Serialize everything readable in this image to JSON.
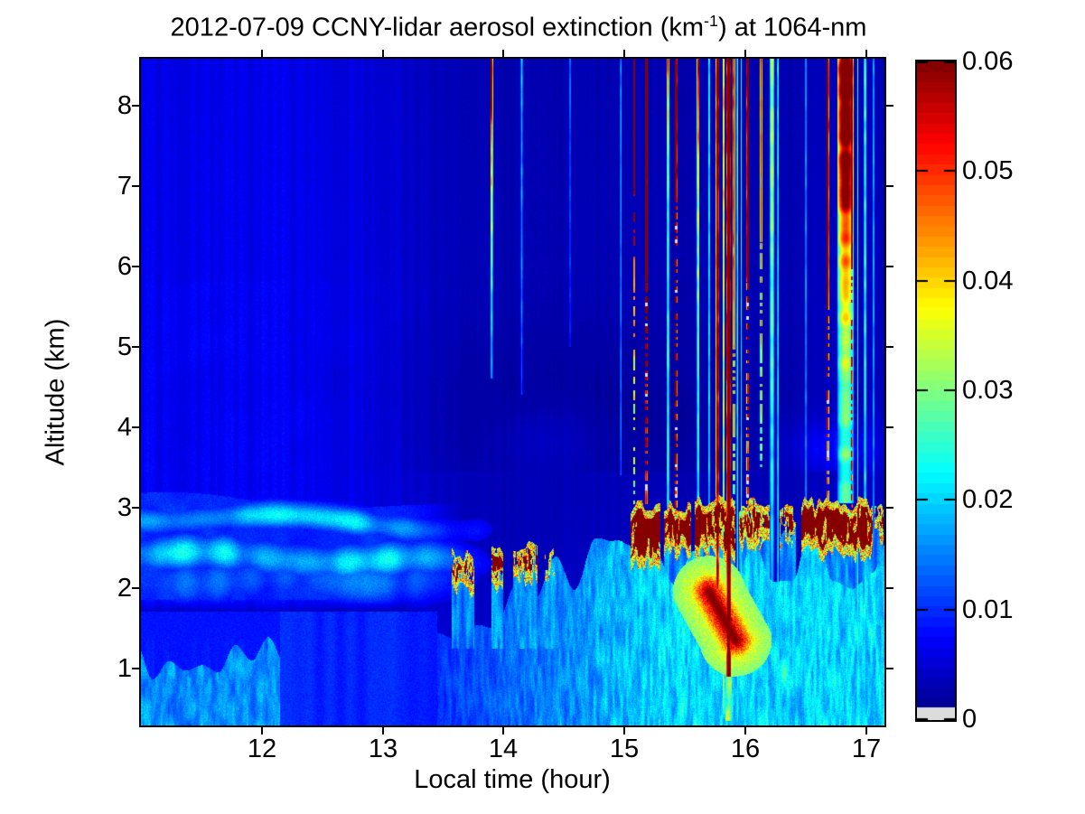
{
  "title": {
    "pre": "2012-07-09 CCNY-lidar aerosol extinction (km",
    "sup": "-1",
    "post": ") at 1064-nm"
  },
  "chart_data": {
    "type": "heatmap",
    "title": "2012-07-09 CCNY-lidar aerosol extinction (km^-1) at 1064-nm",
    "xlabel": "Local time (hour)",
    "ylabel": "Altitude (km)",
    "x_range": [
      11.0,
      17.15
    ],
    "y_range": [
      0.29,
      8.58
    ],
    "x_ticks": [
      12,
      13,
      14,
      15,
      16,
      17
    ],
    "y_ticks": [
      1,
      2,
      3,
      4,
      5,
      6,
      7,
      8
    ],
    "grid": false,
    "colormap": "jet64",
    "under_color": "#dcdcdc",
    "colorbar": {
      "min": 0,
      "max": 0.06,
      "ticks": [
        0.06,
        0.05,
        0.04,
        0.03,
        0.02,
        0.01,
        0
      ],
      "tick_labels": [
        "0.06",
        "0.05",
        "0.04",
        "0.03",
        "0.02",
        "0.01",
        "0"
      ],
      "position": "right",
      "under_strip_frac": 0.019
    },
    "field": {
      "column_noise": 0.16,
      "pixel_noise": 0.11,
      "background": {
        "left_val": 0.0068,
        "mid_val": 0.0032,
        "trans_t": [
          12.3,
          14.0
        ],
        "right_boost": 0.0007,
        "right_t": 16.3,
        "alt_fade": 0.1,
        "bl_top": 3.45,
        "low_gain": 0.25,
        "left_wavy_amp": 0.0013,
        "dark_patch": {
          "t": 14.6,
          "st": 1.5,
          "a": 4.1,
          "sa": 1.05,
          "amp": 0.0017
        },
        "bumps": [
          {
            "t": 16.75,
            "st": 0.38,
            "a": 3.75,
            "sa": 0.32,
            "amp": 0.004
          },
          {
            "t": 14.35,
            "st": 0.45,
            "a": 3.85,
            "sa": 0.5,
            "amp": 0.0022
          }
        ]
      },
      "layers": {
        "fade_t": [
          12.9,
          14.2
        ],
        "mix_top": {
          "a0": 3.15,
          "slope": 0.07,
          "wamp": 0.06,
          "wfreq": 2.9,
          "fill": 0.0085,
          "fill_n": 0.0025
        },
        "bands": [
          {
            "c0": 2.9,
            "slope": 0.05,
            "wamp": 0.07,
            "wfreq": 2.6,
            "wph": 1.2,
            "sigma": 0.16,
            "amp_lo": 0.009,
            "amp_hi": 0.011,
            "nfreq": 4.7
          },
          {
            "c0": 2.42,
            "slope": 0.04,
            "wamp": 0.05,
            "wfreq": 3.4,
            "wph": 0.0,
            "sigma": 0.21,
            "amp_lo": 0.01,
            "amp_hi": 0.011,
            "nfreq": 5.9
          },
          {
            "c0": 2.1,
            "slope": 0.0,
            "wamp": 0.04,
            "wfreq": 4.1,
            "wph": 2.0,
            "sigma": 0.3,
            "amp_lo": 0.006,
            "amp_hi": 0.006,
            "nfreq": 7.3
          }
        ],
        "base_add": 0.004,
        "dark_slot": {
          "a": 1.62,
          "sigma": 0.14,
          "depth": 0.78,
          "t_end": 13.5
        }
      },
      "bottom": {
        "plume_t_end": 12.15,
        "plume_h0": 0.85,
        "plume_hvar": 0.55,
        "plume_v": 0.011,
        "plume_nv": 0.01,
        "calm_t_end": 13.45,
        "calm_v": 0.0085,
        "calm_nv": 0.002,
        "grow_time": 1.8,
        "grow_v0": 0.01,
        "grow_v1": 0.01,
        "grow_top0": 1.55,
        "grow_top1": 1.0
      },
      "clusters": [
        [
          13.57,
          13.76,
          2.02,
          2.4,
          0.55
        ],
        [
          13.9,
          14.0,
          2.05,
          2.45,
          0.5
        ],
        [
          14.08,
          14.28,
          2.15,
          2.55,
          0.55
        ],
        [
          14.34,
          14.42,
          2.2,
          2.42,
          0.35
        ],
        [
          15.05,
          15.3,
          2.3,
          3.0,
          0.7
        ],
        [
          15.33,
          15.55,
          2.45,
          3.0,
          0.65
        ],
        [
          15.58,
          15.92,
          2.45,
          3.08,
          0.65
        ],
        [
          15.95,
          16.2,
          2.55,
          3.05,
          0.55
        ],
        [
          16.28,
          16.42,
          2.6,
          2.95,
          0.4
        ],
        [
          16.46,
          17.05,
          2.45,
          3.05,
          0.72
        ],
        [
          17.07,
          17.14,
          2.65,
          2.95,
          0.45
        ]
      ],
      "cluster_style": {
        "core_v": 0.067,
        "fringe_v": 0.032,
        "fringe_band": 0.2,
        "plume_v": 0.0155
      },
      "feature": {
        "seg": [
          15.7,
          1.95,
          15.92,
          1.35
        ],
        "core_r": 0.22,
        "core_v": 0.063,
        "halo_r": 0.45,
        "halo_v": 0.035,
        "streak": {
          "t0": 15.835,
          "t1": 15.885,
          "a0": 0.35,
          "a1": 1.6,
          "v": 0.027
        },
        "spot": {
          "t": 16.32,
          "st": 0.07,
          "a": 0.95,
          "sa": 0.35,
          "v": 0.027
        }
      },
      "stripes": [
        {
          "t": 13.9,
          "w": 0.022,
          "end": 4.6,
          "dot": 0,
          "gray": 0,
          "stops": [
            [
              8.6,
              0.053
            ],
            [
              7.8,
              0.042
            ],
            [
              6.8,
              0.028
            ],
            [
              5.6,
              0.018
            ],
            [
              4.6,
              0.012
            ]
          ]
        },
        {
          "t": 14.15,
          "w": 0.016,
          "end": 4.4,
          "dot": 0,
          "gray": 0,
          "stops": [
            [
              8.6,
              0.016
            ],
            [
              5.5,
              0.012
            ],
            [
              4.4,
              0.009
            ]
          ]
        },
        {
          "t": 14.55,
          "w": 0.013,
          "end": 5.0,
          "dot": 0,
          "gray": 0,
          "stops": [
            [
              8.6,
              0.012
            ],
            [
              5.0,
              0.008
            ]
          ]
        },
        {
          "t": 14.97,
          "w": 0.013,
          "end": 3.4,
          "dot": 0,
          "gray": 0,
          "stops": [
            [
              8.6,
              0.014
            ],
            [
              3.4,
              0.011
            ]
          ]
        },
        {
          "t": 15.08,
          "w": 0.02,
          "end": 2.95,
          "dot": 6.9,
          "gray": 0,
          "stops": [
            [
              8.6,
              0.062
            ],
            [
              6.9,
              0.055
            ],
            [
              5.0,
              0.035
            ],
            [
              2.95,
              0.025
            ]
          ]
        },
        {
          "t": 15.18,
          "w": 0.026,
          "end": 2.95,
          "dot": 5.8,
          "gray": 1,
          "stops": [
            [
              8.6,
              0.065
            ],
            [
              5.8,
              0.062
            ],
            [
              2.95,
              0.045
            ]
          ]
        },
        {
          "t": 15.36,
          "w": 0.018,
          "end": 0.29,
          "dot": 0,
          "gray": 0,
          "stops": [
            [
              8.6,
              0.048
            ],
            [
              8.0,
              0.03
            ],
            [
              6.5,
              0.022
            ],
            [
              3.0,
              0.02
            ],
            [
              0.29,
              0.015
            ]
          ]
        },
        {
          "t": 15.425,
          "w": 0.024,
          "end": 2.95,
          "dot": 6.8,
          "gray": 1,
          "stops": [
            [
              8.6,
              0.065
            ],
            [
              6.8,
              0.062
            ],
            [
              2.95,
              0.048
            ]
          ]
        },
        {
          "t": 15.61,
          "w": 0.022,
          "end": 0.29,
          "dot": 0,
          "gray": 0,
          "stops": [
            [
              8.6,
              0.044
            ],
            [
              6.8,
              0.028
            ],
            [
              4.5,
              0.02
            ],
            [
              0.29,
              0.015
            ]
          ]
        },
        {
          "t": 15.7,
          "w": 0.014,
          "end": 0.29,
          "dot": 0,
          "gray": 0,
          "stops": [
            [
              8.6,
              0.02
            ],
            [
              0.29,
              0.015
            ]
          ]
        },
        {
          "t": 15.77,
          "w": 0.028,
          "end": 2.0,
          "dot": 0,
          "gray": 0,
          "stops": [
            [
              8.6,
              0.055
            ],
            [
              4.0,
              0.05
            ],
            [
              2.0,
              0.045
            ]
          ]
        },
        {
          "t": 15.82,
          "w": 0.018,
          "end": 0.5,
          "dot": 0,
          "gray": 0,
          "stops": [
            [
              8.6,
              0.034
            ],
            [
              5.0,
              0.028
            ],
            [
              0.5,
              0.022
            ]
          ]
        },
        {
          "t": 15.862,
          "w": 0.034,
          "end": 0.9,
          "dot": 0,
          "gray": 0,
          "stops": [
            [
              8.6,
              0.066
            ],
            [
              0.9,
              0.062
            ]
          ]
        },
        {
          "t": 15.905,
          "w": 0.018,
          "end": 3.0,
          "dot": 5.0,
          "gray": 0,
          "stops": [
            [
              8.6,
              0.046
            ],
            [
              5.0,
              0.04
            ],
            [
              3.0,
              0.03
            ]
          ]
        },
        {
          "t": 15.935,
          "w": 0.014,
          "end": 0.29,
          "dot": 0,
          "gray": 0,
          "stops": [
            [
              8.6,
              0.022
            ],
            [
              0.29,
              0.016
            ]
          ]
        },
        {
          "t": 15.965,
          "w": 0.013,
          "end": 0.29,
          "dot": 0,
          "gray": 0,
          "stops": [
            [
              8.6,
              0.019
            ],
            [
              0.29,
              0.015
            ]
          ]
        },
        {
          "t": 16.02,
          "w": 0.022,
          "end": 2.95,
          "dot": 5.8,
          "gray": 1,
          "stops": [
            [
              8.6,
              0.063
            ],
            [
              5.8,
              0.06
            ],
            [
              2.95,
              0.04
            ]
          ]
        },
        {
          "t": 16.13,
          "w": 0.016,
          "end": 3.5,
          "dot": 6.3,
          "gray": 0,
          "stops": [
            [
              8.6,
              0.05
            ],
            [
              6.3,
              0.045
            ],
            [
              3.5,
              0.028
            ]
          ]
        },
        {
          "t": 16.22,
          "w": 0.032,
          "end": 1.4,
          "dot": 0,
          "gray": 0,
          "stops": [
            [
              8.6,
              0.026
            ],
            [
              6.0,
              0.023
            ],
            [
              3.0,
              0.017
            ],
            [
              1.4,
              0.013
            ]
          ]
        },
        {
          "t": 16.27,
          "w": 0.014,
          "end": 0.29,
          "dot": 0,
          "gray": 0,
          "stops": [
            [
              8.6,
              0.02
            ],
            [
              0.29,
              0.015
            ]
          ]
        },
        {
          "t": 16.5,
          "w": 0.012,
          "end": 0.29,
          "dot": 0,
          "gray": 0,
          "stops": [
            [
              8.6,
              0.015
            ],
            [
              0.29,
              0.012
            ]
          ]
        },
        {
          "t": 16.68,
          "w": 0.022,
          "end": 2.95,
          "dot": 5.5,
          "gray": 1,
          "stops": [
            [
              8.6,
              0.063
            ],
            [
              5.5,
              0.06
            ],
            [
              2.95,
              0.04
            ]
          ]
        },
        {
          "t": 16.83,
          "w": 0.13,
          "end": 3.05,
          "dot": 0,
          "gray": 0,
          "stops": [
            [
              8.6,
              0.056
            ],
            [
              7.2,
              0.047
            ],
            [
              6.3,
              0.038
            ],
            [
              5.3,
              0.028
            ],
            [
              4.3,
              0.023
            ],
            [
              3.05,
              0.021
            ]
          ]
        },
        {
          "t": 16.88,
          "w": 0.012,
          "end": 3.0,
          "dot": 6.0,
          "gray": 0,
          "stops": [
            [
              8.6,
              0.065
            ],
            [
              6.0,
              0.06
            ],
            [
              3.0,
              0.05
            ]
          ]
        },
        {
          "t": 16.93,
          "w": 0.014,
          "end": 0.29,
          "dot": 0,
          "gray": 0,
          "stops": [
            [
              8.6,
              0.022
            ],
            [
              3.0,
              0.019
            ],
            [
              0.29,
              0.016
            ]
          ]
        },
        {
          "t": 16.99,
          "w": 0.018,
          "end": 0.29,
          "dot": 0,
          "gray": 0,
          "stops": [
            [
              8.6,
              0.022
            ],
            [
              3.0,
              0.018
            ],
            [
              0.29,
              0.016
            ]
          ]
        },
        {
          "t": 17.06,
          "w": 0.012,
          "end": 0.29,
          "dot": 0,
          "gray": 0,
          "stops": [
            [
              8.6,
              0.016
            ],
            [
              0.29,
              0.013
            ]
          ]
        }
      ]
    }
  }
}
